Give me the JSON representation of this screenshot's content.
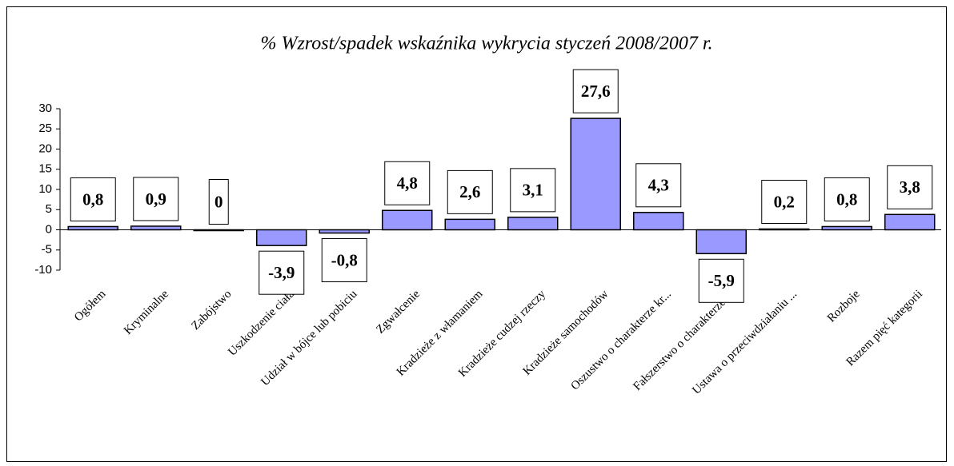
{
  "chart_data": {
    "type": "bar",
    "title": "% Wzrost/spadek wskaźnika wykrycia styczeń 2008/2007 r.",
    "categories": [
      "Ogółem",
      "Kryminalne",
      "Zabójstwo",
      "Uszkodzenie ciała",
      "Udział w bójce lub pobiciu",
      "Zgwałcenie",
      "Kradzieże z włamaniem",
      "Kradzieże cudzej rzeczy",
      "Kradzieże samochodów",
      "Oszustwo o charakterze kr...",
      "Fałszerstwo o charakterze ...",
      "Ustawa o przeciwdziałaniu ...",
      "Rozboje",
      "Razem pięć kategorii"
    ],
    "values": [
      0.8,
      0.9,
      0,
      -3.9,
      -0.8,
      4.8,
      2.6,
      3.1,
      27.6,
      4.3,
      -5.9,
      0.2,
      0.8,
      3.8
    ],
    "value_labels": [
      "0,8",
      "0,9",
      "0",
      "-3,9",
      "-0,8",
      "4,8",
      "2,6",
      "3,1",
      "27,6",
      "4,3",
      "-5,9",
      "0,2",
      "0,8",
      "3,8"
    ],
    "color": "#9999ff",
    "ylim": [
      -10,
      30
    ],
    "yticks": [
      -10,
      -5,
      0,
      5,
      10,
      15,
      20,
      25,
      30
    ]
  }
}
